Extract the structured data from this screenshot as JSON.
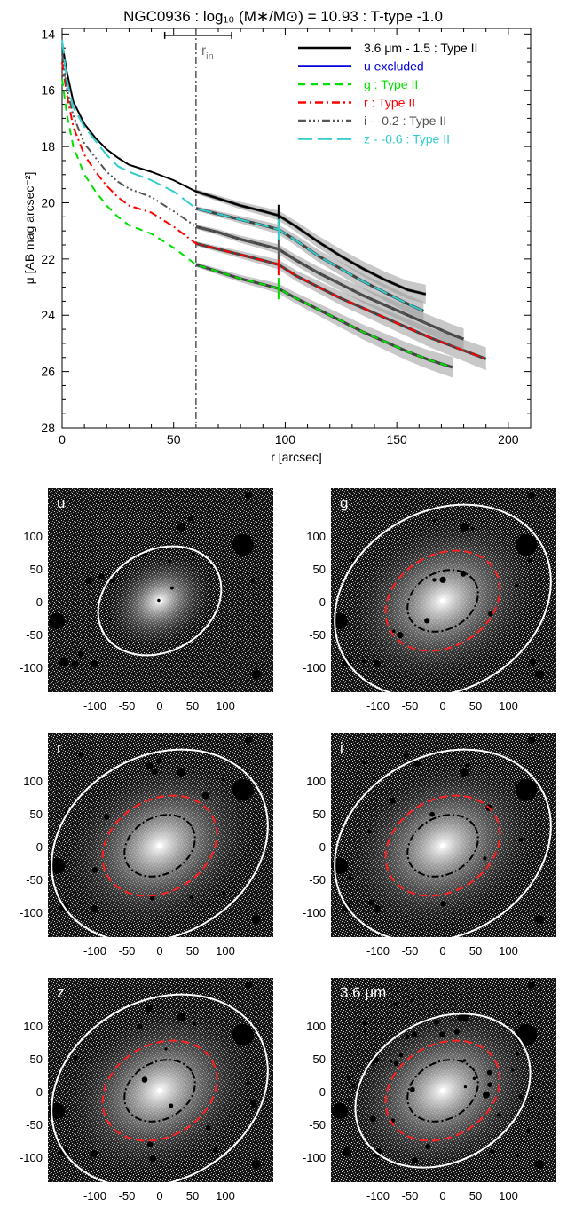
{
  "chart_data": [
    {
      "type": "line",
      "title": "NGC0936 : log₁₀ (M∗/M⊙) = 10.93 : T-type -1.0",
      "xlabel": "r [arcsec]",
      "ylabel": "μ [AB mag arcsec⁻²]",
      "xlim": [
        0,
        210
      ],
      "ylim": [
        28,
        13.8
      ],
      "y_inverted": true,
      "x_ticks": [
        0,
        50,
        100,
        150,
        200
      ],
      "y_ticks": [
        14,
        16,
        18,
        20,
        22,
        24,
        26,
        28
      ],
      "grid": false,
      "legend_position": "top-right",
      "r_in_label": "r",
      "r_in_subscript": "in",
      "r_in": 60,
      "r_in_range": [
        46,
        76
      ],
      "r_in_marker_mu": 14.05,
      "break_radius": 97,
      "series": [
        {
          "name": "3.6 μm - 1.5 : Type II",
          "color": "#000000",
          "dash": "solid",
          "x": [
            0,
            2,
            5,
            10,
            15,
            20,
            25,
            30,
            40,
            50,
            60,
            70,
            80,
            90,
            97,
            105,
            115,
            125,
            135,
            145,
            155,
            163
          ],
          "y": [
            14.3,
            15.3,
            16.4,
            17.2,
            17.7,
            18.1,
            18.4,
            18.65,
            18.9,
            19.2,
            19.6,
            19.85,
            20.1,
            20.3,
            20.45,
            20.85,
            21.4,
            21.9,
            22.35,
            22.75,
            23.1,
            23.25
          ]
        },
        {
          "name": "u excluded",
          "color": "#0000dd",
          "dash": "solid",
          "x": [],
          "y": []
        },
        {
          "name": "g : Type II",
          "color": "#00e000",
          "dash": "dash",
          "x": [
            0,
            2,
            5,
            10,
            15,
            20,
            25,
            30,
            40,
            50,
            60,
            70,
            80,
            90,
            97,
            105,
            115,
            125,
            135,
            145,
            155,
            165,
            175
          ],
          "y": [
            15.6,
            16.8,
            18.0,
            19.0,
            19.6,
            20.1,
            20.5,
            20.8,
            21.1,
            21.6,
            22.2,
            22.45,
            22.7,
            22.9,
            23.05,
            23.4,
            23.8,
            24.2,
            24.6,
            24.95,
            25.3,
            25.6,
            25.85
          ]
        },
        {
          "name": "r : Type II",
          "color": "#ff0000",
          "dash": "dashdot",
          "x": [
            0,
            2,
            5,
            10,
            15,
            20,
            25,
            30,
            40,
            50,
            60,
            70,
            80,
            90,
            97,
            105,
            115,
            125,
            135,
            145,
            155,
            165,
            175,
            185,
            190
          ],
          "y": [
            15.0,
            16.1,
            17.3,
            18.3,
            18.9,
            19.4,
            19.8,
            20.1,
            20.35,
            20.85,
            21.45,
            21.65,
            21.85,
            22.05,
            22.2,
            22.6,
            23.0,
            23.4,
            23.75,
            24.1,
            24.45,
            24.8,
            25.1,
            25.4,
            25.55
          ]
        },
        {
          "name": "i - -0.2 : Type II",
          "color": "#555555",
          "dash": "dashdotdotdot",
          "x": [
            0,
            2,
            5,
            10,
            15,
            20,
            25,
            30,
            40,
            50,
            60,
            70,
            80,
            90,
            97,
            105,
            115,
            125,
            135,
            145,
            155,
            165,
            175,
            180
          ],
          "y": [
            14.7,
            15.9,
            16.9,
            17.9,
            18.4,
            18.9,
            19.25,
            19.5,
            19.8,
            20.3,
            20.85,
            21.05,
            21.3,
            21.5,
            21.65,
            22.05,
            22.5,
            22.9,
            23.3,
            23.65,
            24.0,
            24.35,
            24.7,
            24.85
          ]
        },
        {
          "name": "z - -0.6 : Type II",
          "color": "#33cccc",
          "dash": "longdash",
          "x": [
            0,
            2,
            5,
            10,
            15,
            20,
            25,
            30,
            40,
            50,
            60,
            70,
            80,
            90,
            97,
            105,
            115,
            125,
            135,
            145,
            155,
            162
          ],
          "y": [
            14.2,
            15.6,
            16.6,
            17.3,
            17.8,
            18.3,
            18.7,
            18.9,
            19.2,
            19.6,
            20.2,
            20.4,
            20.6,
            20.8,
            20.95,
            21.35,
            21.9,
            22.35,
            22.8,
            23.2,
            23.6,
            23.85
          ]
        }
      ]
    },
    {
      "type": "image",
      "panels": [
        {
          "label": "u",
          "band": "u",
          "x_ticks": [
            "-100",
            "-50",
            "0",
            "50",
            "100"
          ],
          "y_ticks": [
            "100",
            "50",
            "0",
            "-50",
            "-100"
          ],
          "ellipses": [
            "white"
          ]
        },
        {
          "label": "g",
          "band": "g",
          "x_ticks": [
            "-100",
            "-50",
            "0",
            "50",
            "100"
          ],
          "y_ticks": [
            "100",
            "50",
            "0",
            "-50",
            "-100"
          ],
          "ellipses": [
            "white",
            "red-dashed",
            "black-dashdot"
          ]
        },
        {
          "label": "r",
          "band": "r",
          "x_ticks": [
            "-100",
            "-50",
            "0",
            "50",
            "100"
          ],
          "y_ticks": [
            "100",
            "50",
            "0",
            "-50",
            "-100"
          ],
          "ellipses": [
            "white",
            "red-dashed",
            "black-dashdot"
          ]
        },
        {
          "label": "i",
          "band": "i",
          "x_ticks": [
            "-100",
            "-50",
            "0",
            "50",
            "100"
          ],
          "y_ticks": [
            "100",
            "50",
            "0",
            "-50",
            "-100"
          ],
          "ellipses": [
            "white",
            "red-dashed",
            "black-dashdot"
          ]
        },
        {
          "label": "z",
          "band": "z",
          "x_ticks": [
            "-100",
            "-50",
            "0",
            "50",
            "100"
          ],
          "y_ticks": [
            "100",
            "50",
            "0",
            "-50",
            "-100"
          ],
          "ellipses": [
            "white",
            "red-dashed",
            "black-dashdot"
          ]
        },
        {
          "label": "3.6 μm",
          "band": "3.6um",
          "x_ticks": [
            "-100",
            "-50",
            "0",
            "50",
            "100"
          ],
          "y_ticks": [
            "100",
            "50",
            "0",
            "-50",
            "-100"
          ],
          "ellipses": [
            "white",
            "red-dashed",
            "black-dashdot"
          ]
        }
      ]
    }
  ]
}
